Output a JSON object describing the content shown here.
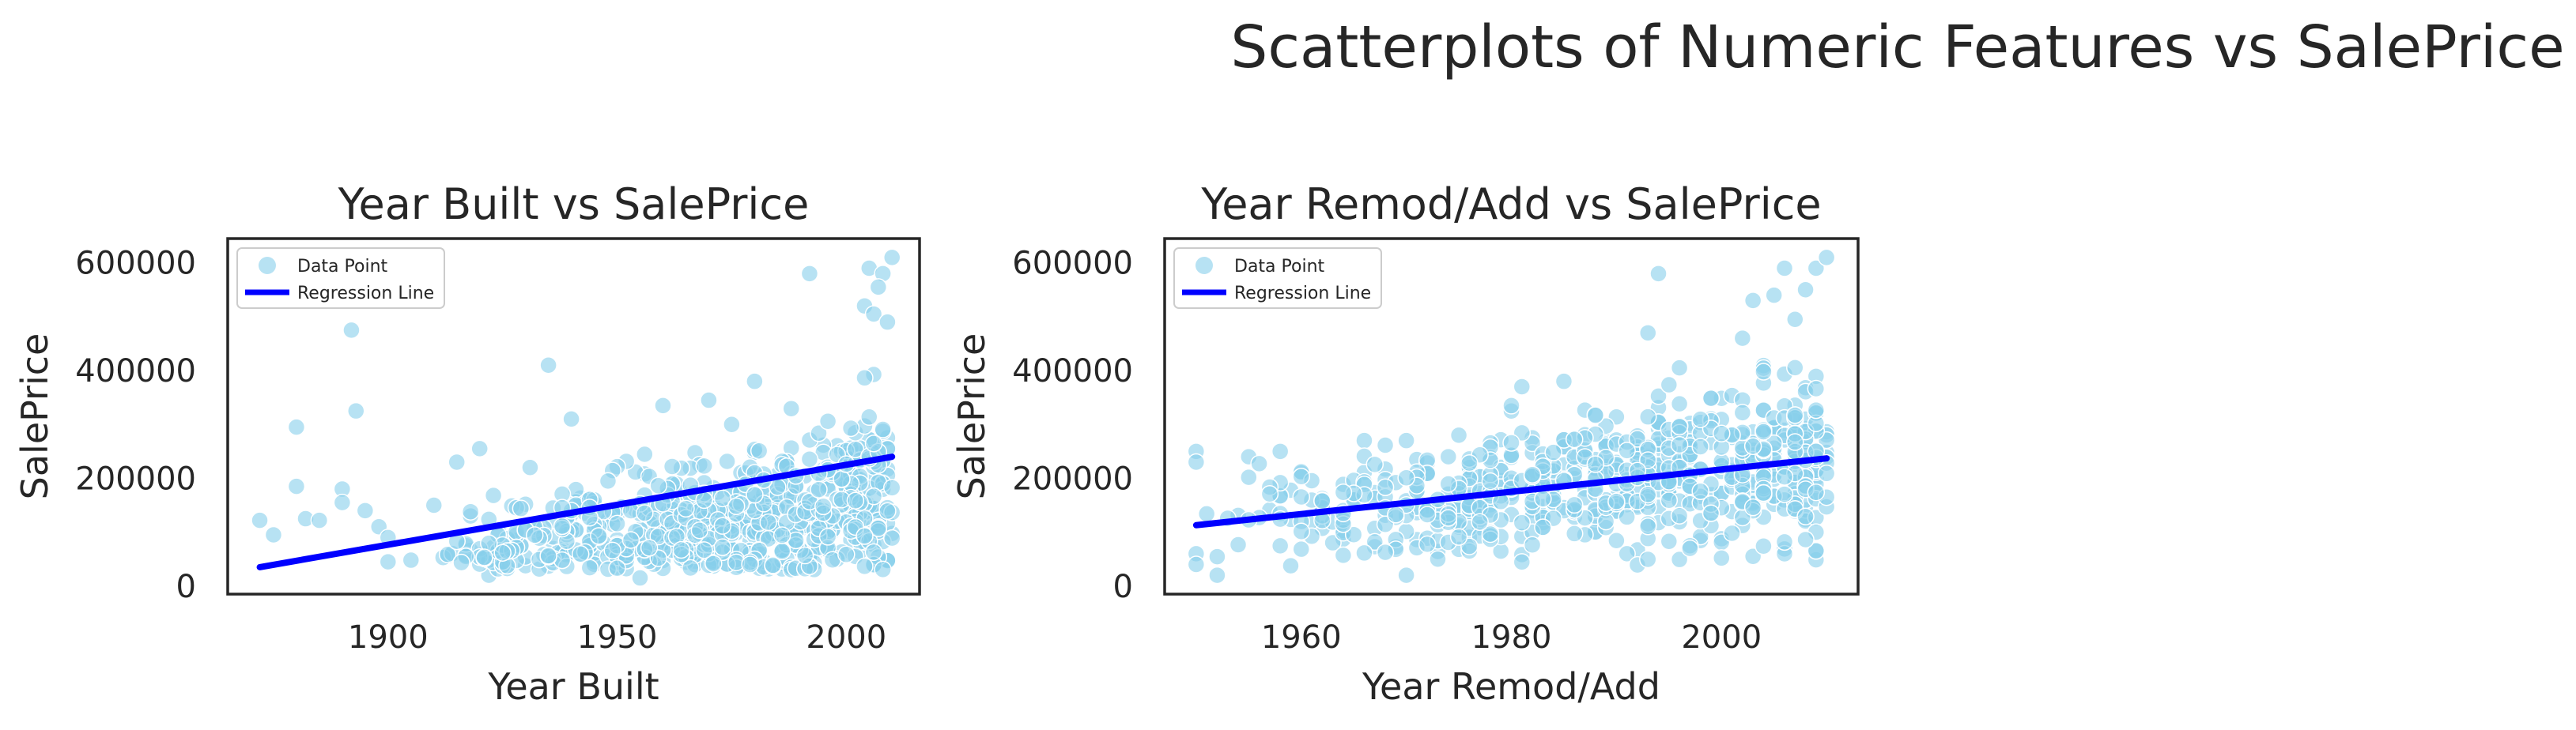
{
  "figure": {
    "title": "Scatterplots of Numeric Features vs SalePrice"
  },
  "colors": {
    "points": "#87ceeb",
    "regression": "#0000ff",
    "frame": "#262626",
    "background": "#ffffff"
  },
  "chart_data": [
    {
      "type": "scatter",
      "title": "Year Built vs SalePrice",
      "xlabel": "Year Built",
      "ylabel": "SalePrice",
      "xlim": [
        1865,
        2016
      ],
      "ylim": [
        -15000,
        645000
      ],
      "xticks": [
        1900,
        1950,
        2000
      ],
      "yticks": [
        0,
        200000,
        400000,
        600000
      ],
      "grid": false,
      "legend": {
        "placement": "top-left",
        "entries": [
          "Data Point",
          "Regression Line"
        ]
      },
      "outliers": [
        [
          1872,
          122000
        ],
        [
          1875,
          95000
        ],
        [
          1880,
          295000
        ],
        [
          1880,
          185000
        ],
        [
          1882,
          125000
        ],
        [
          1885,
          122000
        ],
        [
          1890,
          180000
        ],
        [
          1890,
          155000
        ],
        [
          1892,
          475000
        ],
        [
          1893,
          325000
        ],
        [
          1895,
          140000
        ],
        [
          1898,
          110000
        ],
        [
          1900,
          90000
        ],
        [
          1900,
          45000
        ],
        [
          1905,
          48000
        ],
        [
          1910,
          150000
        ],
        [
          1915,
          230000
        ],
        [
          1920,
          255000
        ],
        [
          1922,
          20000
        ],
        [
          1935,
          410000
        ],
        [
          1940,
          310000
        ],
        [
          1955,
          15000
        ],
        [
          1960,
          335000
        ],
        [
          1970,
          345000
        ],
        [
          1975,
          300000
        ],
        [
          1980,
          380000
        ],
        [
          1992,
          580000
        ],
        [
          2005,
          590000
        ],
        [
          2008,
          580000
        ],
        [
          2010,
          610000
        ],
        [
          2007,
          555000
        ],
        [
          2004,
          520000
        ],
        [
          2006,
          505000
        ],
        [
          2009,
          490000
        ]
      ],
      "cluster": {
        "count": 700,
        "x_range": [
          1910,
          2010
        ],
        "base": 50000,
        "slope_per_year": 1100,
        "spread": 65000,
        "seed": 7
      },
      "regression": {
        "x": [
          1872,
          2010
        ],
        "y": [
          35000,
          240000
        ]
      }
    },
    {
      "type": "scatter",
      "title": "Year Remod/Add vs SalePrice",
      "xlabel": "Year Remod/Add",
      "ylabel": "SalePrice",
      "xlim": [
        1947,
        2013
      ],
      "ylim": [
        -15000,
        645000
      ],
      "xticks": [
        1960,
        1980,
        2000
      ],
      "yticks": [
        0,
        200000,
        400000,
        600000
      ],
      "grid": false,
      "legend": {
        "placement": "top-left",
        "entries": [
          "Data Point",
          "Regression Line"
        ]
      },
      "outliers": [
        [
          1950,
          250000
        ],
        [
          1950,
          230000
        ],
        [
          1950,
          60000
        ],
        [
          1950,
          40000
        ],
        [
          1952,
          20000
        ],
        [
          1955,
          240000
        ],
        [
          1958,
          250000
        ],
        [
          1966,
          270000
        ],
        [
          1970,
          20000
        ],
        [
          1970,
          270000
        ],
        [
          1975,
          280000
        ],
        [
          1981,
          370000
        ],
        [
          1985,
          380000
        ],
        [
          1993,
          470000
        ],
        [
          1994,
          580000
        ],
        [
          1996,
          405000
        ],
        [
          2003,
          530000
        ],
        [
          2005,
          540000
        ],
        [
          2006,
          590000
        ],
        [
          2008,
          550000
        ],
        [
          2009,
          590000
        ],
        [
          2010,
          610000
        ],
        [
          2007,
          495000
        ],
        [
          2002,
          460000
        ],
        [
          2003,
          55000
        ]
      ],
      "cluster": {
        "count": 700,
        "x_range": [
          1950,
          2010
        ],
        "base": 115000,
        "slope_per_year": 2000,
        "spread": 65000,
        "seed": 13
      },
      "regression": {
        "x": [
          1950,
          2010
        ],
        "y": [
          113000,
          237000
        ]
      }
    }
  ]
}
